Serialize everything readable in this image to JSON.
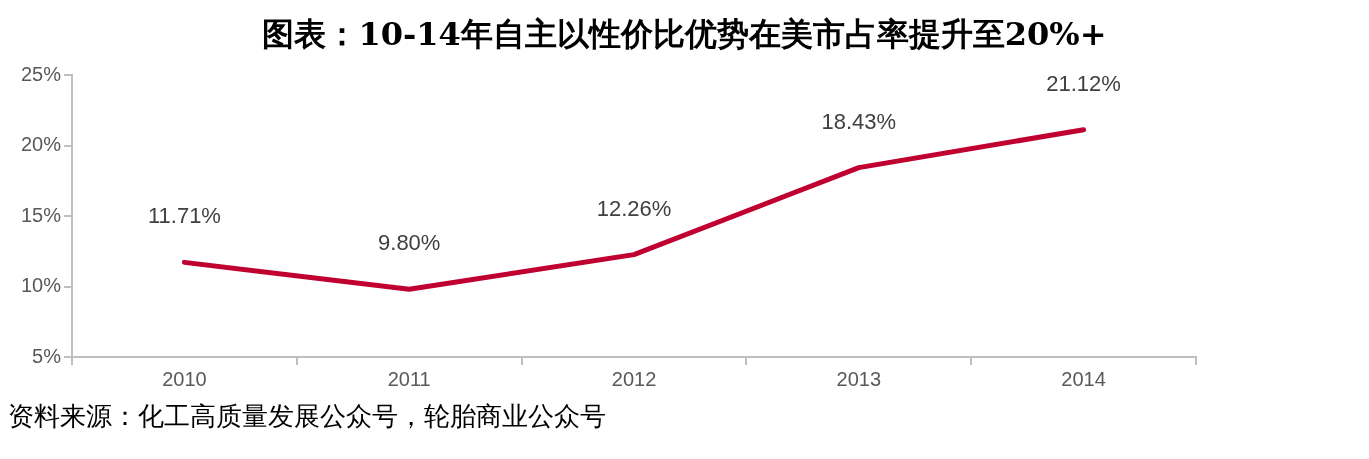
{
  "chart_data": {
    "type": "line",
    "title": "图表：10-14年自主以性价比优势在美市占率提升至20%+",
    "categories": [
      "2010",
      "2011",
      "2012",
      "2013",
      "2014"
    ],
    "series": [
      {
        "color": "#c00030",
        "values": [
          11.71,
          9.8,
          12.26,
          18.43,
          21.12
        ],
        "value_labels": [
          "11.71%",
          "9.80%",
          "12.26%",
          "18.43%",
          "21.12%"
        ]
      }
    ],
    "ylim": [
      5,
      25
    ],
    "yticks": [
      {
        "value": 5,
        "label": "5%"
      },
      {
        "value": 10,
        "label": "10%"
      },
      {
        "value": 15,
        "label": "15%"
      },
      {
        "value": 20,
        "label": "20%"
      },
      {
        "value": 25,
        "label": "25%"
      }
    ],
    "grid": false,
    "legend": false,
    "marker": "none",
    "line_style": "solid",
    "annotations": [
      "资料来源：化工高质量发展公众号，轮胎商业公众号"
    ]
  }
}
